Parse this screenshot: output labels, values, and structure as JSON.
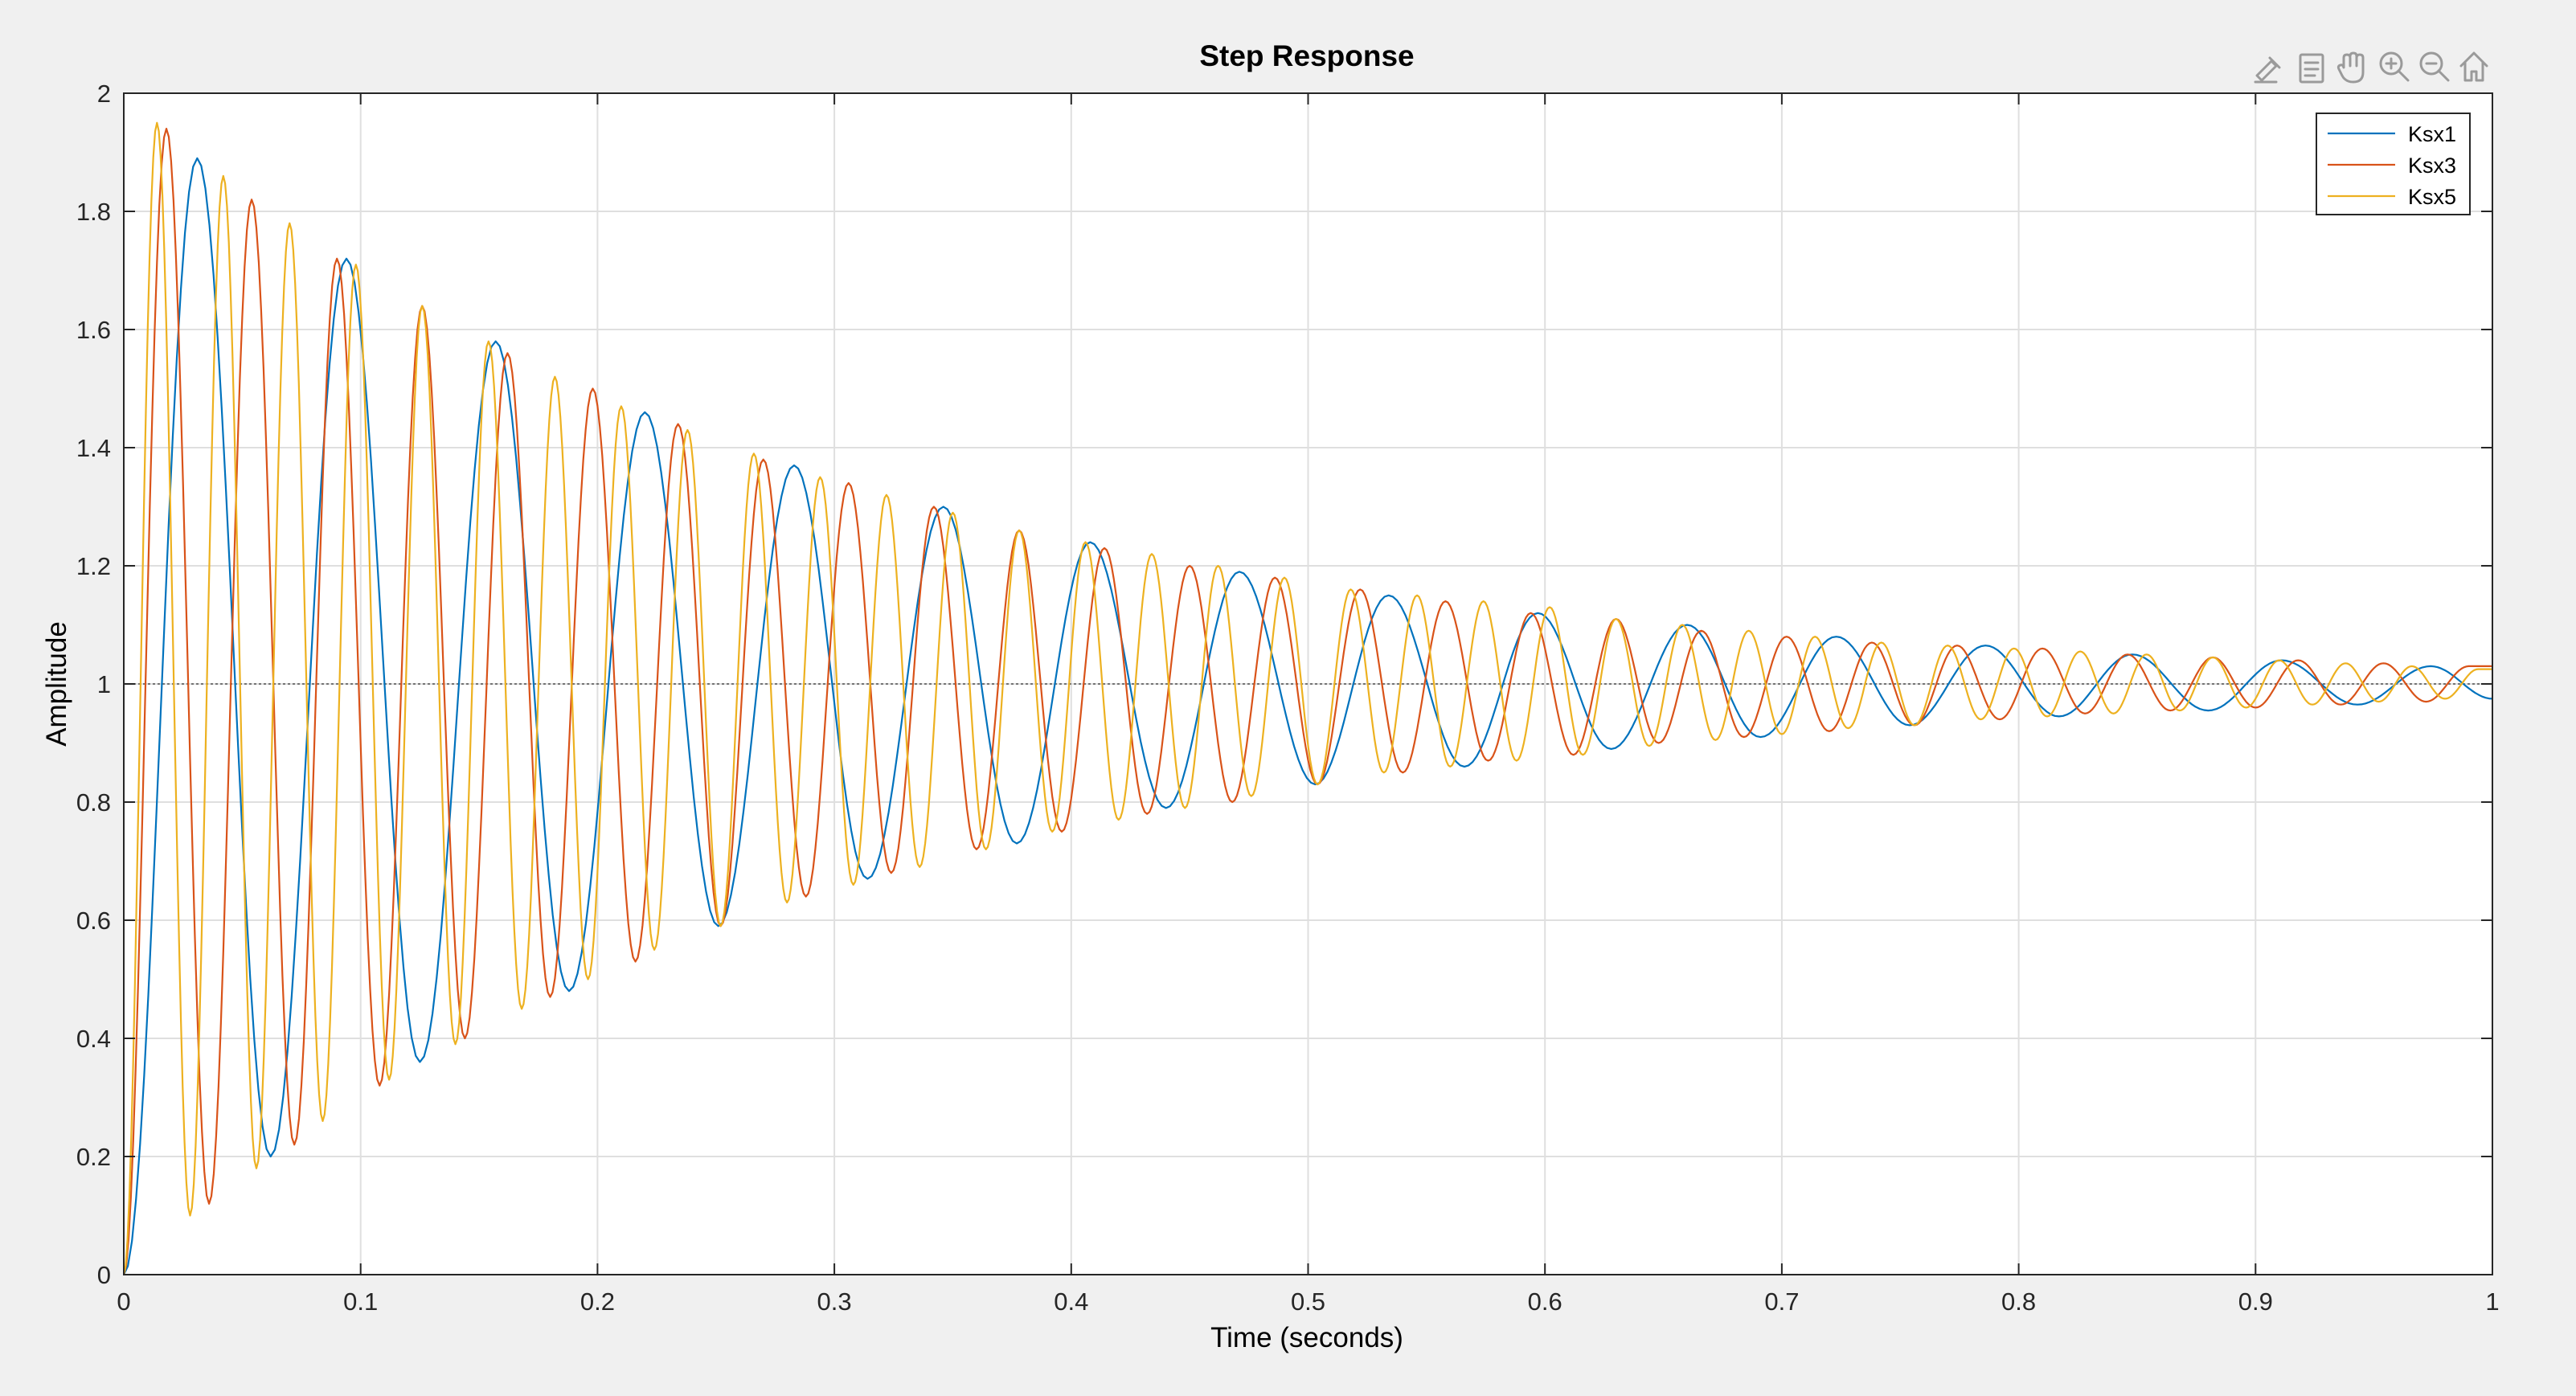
{
  "toolbar": {
    "icons": [
      "brush-icon",
      "datatip-icon",
      "pan-hand-icon",
      "zoom-in-icon",
      "zoom-out-icon",
      "home-icon"
    ]
  },
  "chart_data": {
    "type": "line",
    "title": "Step Response",
    "xlabel": "Time (seconds)",
    "ylabel": "Amplitude",
    "xlim": [
      0,
      1
    ],
    "ylim": [
      0,
      2
    ],
    "xticks": [
      "0",
      "0.1",
      "0.2",
      "0.3",
      "0.4",
      "0.5",
      "0.6",
      "0.7",
      "0.8",
      "0.9",
      "1"
    ],
    "yticks": [
      "0",
      "0.2",
      "0.4",
      "0.6",
      "0.8",
      "1",
      "1.2",
      "1.4",
      "1.6",
      "1.8",
      "2"
    ],
    "grid": true,
    "legend_position": "top-right",
    "reference_line": 1,
    "series": [
      {
        "name": "Ksx1",
        "color": "#0072bd",
        "x": [
          0,
          0.031,
          0.062,
          0.094,
          0.125,
          0.157,
          0.188,
          0.22,
          0.251,
          0.283,
          0.314,
          0.346,
          0.377,
          0.408,
          0.44,
          0.471,
          0.503,
          0.534,
          0.566,
          0.597,
          0.628,
          0.66,
          0.691,
          0.723,
          0.754,
          0.786,
          0.817,
          0.848,
          0.88,
          0.911,
          0.943,
          0.974,
          1.0
        ],
        "y": [
          0,
          1.89,
          0.2,
          1.72,
          0.36,
          1.58,
          0.48,
          1.46,
          0.59,
          1.37,
          0.67,
          1.3,
          0.73,
          1.24,
          0.79,
          1.19,
          0.83,
          1.15,
          0.86,
          1.12,
          0.89,
          1.1,
          0.91,
          1.08,
          0.93,
          1.065,
          0.945,
          1.05,
          0.955,
          1.04,
          0.965,
          1.03,
          0.975
        ]
      },
      {
        "name": "Ksx3",
        "color": "#d95319",
        "x": [
          0,
          0.018,
          0.036,
          0.054,
          0.072,
          0.09,
          0.108,
          0.126,
          0.144,
          0.162,
          0.18,
          0.198,
          0.216,
          0.234,
          0.252,
          0.27,
          0.288,
          0.306,
          0.324,
          0.342,
          0.36,
          0.378,
          0.396,
          0.414,
          0.432,
          0.45,
          0.468,
          0.486,
          0.504,
          0.522,
          0.54,
          0.558,
          0.576,
          0.594,
          0.612,
          0.63,
          0.648,
          0.666,
          0.684,
          0.702,
          0.72,
          0.738,
          0.756,
          0.774,
          0.792,
          0.81,
          0.828,
          0.846,
          0.864,
          0.882,
          0.9,
          0.918,
          0.936,
          0.954,
          0.972,
          0.99,
          1.0
        ],
        "y": [
          0,
          1.94,
          0.12,
          1.82,
          0.22,
          1.72,
          0.32,
          1.64,
          0.4,
          1.56,
          0.47,
          1.5,
          0.53,
          1.44,
          0.59,
          1.38,
          0.64,
          1.34,
          0.68,
          1.3,
          0.72,
          1.26,
          0.75,
          1.23,
          0.78,
          1.2,
          0.8,
          1.18,
          0.83,
          1.16,
          0.85,
          1.14,
          0.87,
          1.12,
          0.88,
          1.11,
          0.9,
          1.09,
          0.91,
          1.08,
          0.92,
          1.07,
          0.93,
          1.065,
          0.94,
          1.06,
          0.95,
          1.05,
          0.955,
          1.045,
          0.96,
          1.04,
          0.965,
          1.035,
          0.97,
          1.03,
          1.03
        ]
      },
      {
        "name": "Ksx5",
        "color": "#edb120",
        "x": [
          0,
          0.014,
          0.028,
          0.042,
          0.056,
          0.07,
          0.084,
          0.098,
          0.112,
          0.126,
          0.14,
          0.154,
          0.168,
          0.182,
          0.196,
          0.21,
          0.224,
          0.238,
          0.252,
          0.266,
          0.28,
          0.294,
          0.308,
          0.322,
          0.336,
          0.35,
          0.364,
          0.378,
          0.392,
          0.406,
          0.42,
          0.434,
          0.448,
          0.462,
          0.476,
          0.49,
          0.504,
          0.518,
          0.532,
          0.546,
          0.56,
          0.574,
          0.588,
          0.602,
          0.616,
          0.63,
          0.644,
          0.658,
          0.672,
          0.686,
          0.7,
          0.714,
          0.728,
          0.742,
          0.756,
          0.77,
          0.784,
          0.798,
          0.812,
          0.826,
          0.84,
          0.854,
          0.868,
          0.882,
          0.896,
          0.91,
          0.924,
          0.938,
          0.952,
          0.966,
          0.98,
          0.994,
          1.0
        ],
        "y": [
          0,
          1.95,
          0.1,
          1.86,
          0.18,
          1.78,
          0.26,
          1.71,
          0.33,
          1.64,
          0.39,
          1.58,
          0.45,
          1.52,
          0.5,
          1.47,
          0.55,
          1.43,
          0.59,
          1.39,
          0.63,
          1.35,
          0.66,
          1.32,
          0.69,
          1.29,
          0.72,
          1.26,
          0.75,
          1.24,
          0.77,
          1.22,
          0.79,
          1.2,
          0.81,
          1.18,
          0.83,
          1.16,
          0.85,
          1.15,
          0.86,
          1.14,
          0.87,
          1.13,
          0.88,
          1.11,
          0.895,
          1.1,
          0.905,
          1.09,
          0.915,
          1.08,
          0.925,
          1.07,
          0.93,
          1.065,
          0.94,
          1.06,
          0.945,
          1.055,
          0.95,
          1.05,
          0.955,
          1.045,
          0.96,
          1.04,
          0.965,
          1.035,
          0.97,
          1.03,
          0.975,
          1.025,
          1.025
        ]
      }
    ]
  }
}
